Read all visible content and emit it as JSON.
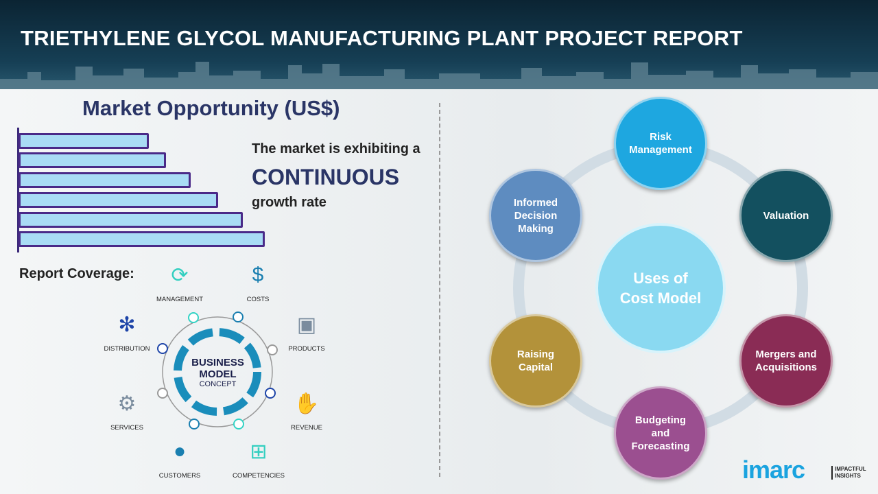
{
  "header": {
    "title": "TRIETHYLENE GLYCOL MANUFACTURING PLANT PROJECT REPORT"
  },
  "market": {
    "title": "Market Opportunity (US$)",
    "bar_levels": [
      0.53,
      0.6,
      0.7,
      0.81,
      0.91,
      1.0
    ],
    "line1": "The market is exhibiting a",
    "line2": "CONTINUOUS",
    "line3": "growth rate"
  },
  "coverage": {
    "title": "Report Coverage:",
    "center_line1": "BUSINESS",
    "center_line2": "MODEL",
    "center_line3": "CONCEPT",
    "items": [
      {
        "label": "MANAGEMENT",
        "icon": "lightbulb-cycle-icon"
      },
      {
        "label": "COSTS",
        "icon": "money-bag-icon"
      },
      {
        "label": "PRODUCTS",
        "icon": "box-icon"
      },
      {
        "label": "REVENUE",
        "icon": "hand-coins-icon"
      },
      {
        "label": "COMPETENCIES",
        "icon": "hierarchy-icon"
      },
      {
        "label": "CUSTOMERS",
        "icon": "person-icon"
      },
      {
        "label": "SERVICES",
        "icon": "gears-icon"
      },
      {
        "label": "DISTRIBUTION",
        "icon": "network-icon"
      }
    ]
  },
  "cost_model": {
    "center": "Uses of Cost Model",
    "nodes": [
      {
        "label": "Risk Management",
        "color": "#1ea7e0"
      },
      {
        "label": "Valuation",
        "color": "#13505f"
      },
      {
        "label": "Mergers and Acquisitions",
        "color": "#8a2c55"
      },
      {
        "label": "Budgeting and Forecasting",
        "color": "#9b4f90"
      },
      {
        "label": "Raising Capital",
        "color": "#b3923a"
      },
      {
        "label": "Informed Decision Making",
        "color": "#5e8cc0"
      }
    ]
  },
  "logo": {
    "name": "imarc",
    "tagline1": "IMPACTFUL",
    "tagline2": "INSIGHTS"
  }
}
